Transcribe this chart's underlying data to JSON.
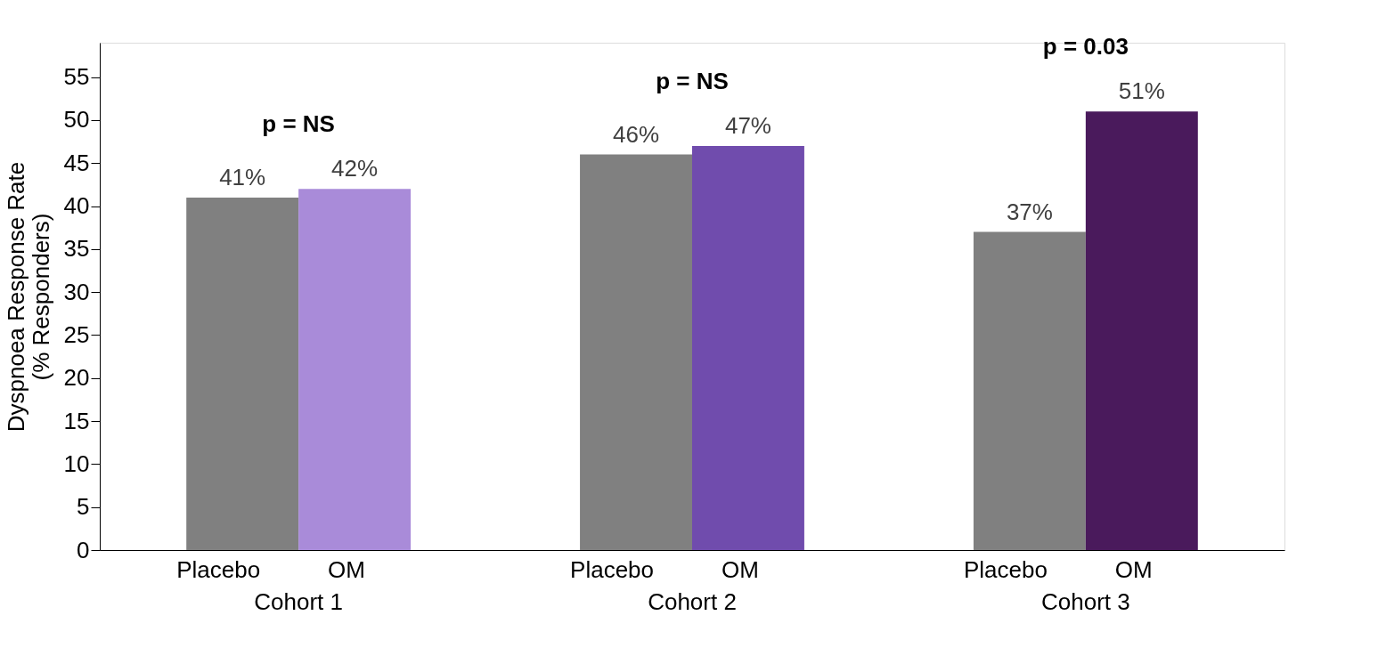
{
  "chart_data": {
    "type": "bar",
    "ylabel": "Dyspnoea Response Rate\n(% Responders)",
    "categories": [
      "Cohort 1",
      "Cohort 2",
      "Cohort 3"
    ],
    "series": [
      {
        "name": "Placebo",
        "color": "#808080",
        "values": [
          41,
          46,
          37
        ],
        "value_labels": [
          "41%",
          "46%",
          "37%"
        ]
      },
      {
        "name": "OM",
        "colors": [
          "#a98bd9",
          "#704cad",
          "#4a1a5c"
        ],
        "values": [
          42,
          47,
          51
        ],
        "value_labels": [
          "42%",
          "47%",
          "51%"
        ]
      }
    ],
    "ylim": [
      0,
      59
    ],
    "yticks": [
      0,
      5,
      10,
      15,
      20,
      25,
      30,
      35,
      40,
      45,
      50,
      55
    ],
    "grid": false,
    "annotations": [
      "p = NS",
      "p = NS",
      "p = 0.03"
    ]
  }
}
